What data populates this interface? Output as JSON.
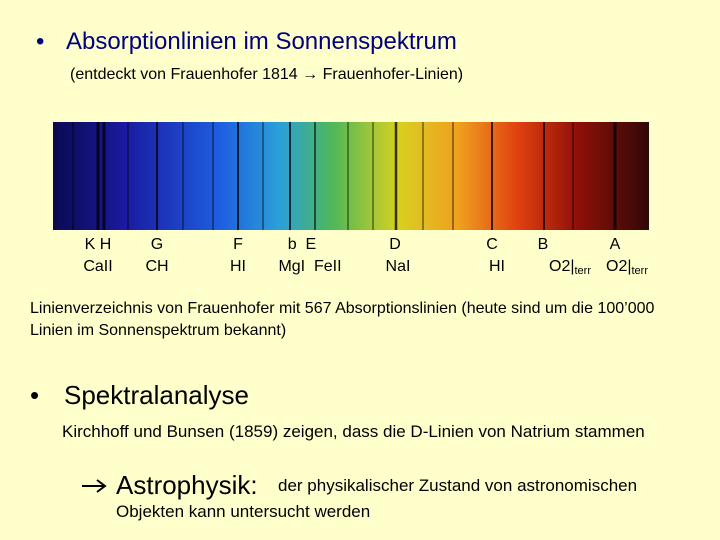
{
  "header": {
    "title": "Absorptionlinien im Sonnenspektrum",
    "subtitle": "(entdeckt von Frauenhofer 1814 → Frauenhofer-Linien)"
  },
  "spectrum": {
    "labels": [
      {
        "line": "K H",
        "element": "CaII"
      },
      {
        "line": "G",
        "element": "CH"
      },
      {
        "line": "F",
        "element": "HI"
      },
      {
        "line": "b  E",
        "element": "MgI  FeII"
      },
      {
        "line": "D",
        "element": "NaI"
      },
      {
        "line": "C",
        "element": "HI"
      },
      {
        "line": "B",
        "element": "O2|",
        "sub": "terr"
      },
      {
        "line": "A",
        "element": "O2|",
        "sub": "terr"
      }
    ]
  },
  "note": "Linienverzeichnis von Frauenhofer mit 567 Absorptionslinien (heute sind um die 100’000 Linien im Sonnenspektrum bekannt)",
  "section": {
    "title": "Spektralanalyse",
    "text": "Kirchhoff und Bunsen (1859) zeigen, dass die D-Linien von Natrium stammen",
    "conclusion": {
      "head": "Astrophysik:",
      "line1": "der physikalischer Zustand von astronomischen",
      "line2": "Objekten kann untersucht werden"
    }
  }
}
